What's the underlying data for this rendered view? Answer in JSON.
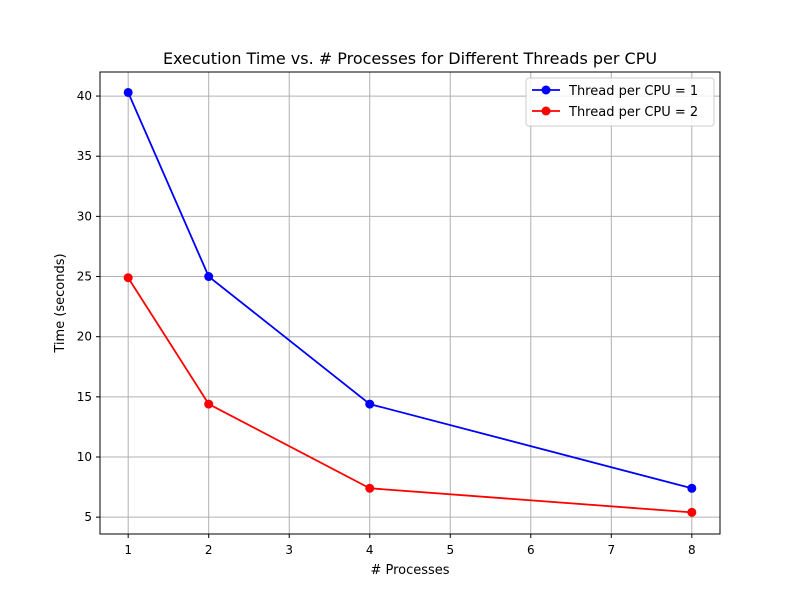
{
  "chart_data": {
    "type": "line",
    "title": "Execution Time vs. # Processes for Different Threads per CPU",
    "xlabel": "# Processes",
    "ylabel": "Time (seconds)",
    "xlim": [
      0.65,
      8.35
    ],
    "ylim": [
      3.6,
      42.0
    ],
    "xticks": [
      1,
      2,
      3,
      4,
      5,
      6,
      7,
      8
    ],
    "yticks": [
      5,
      10,
      15,
      20,
      25,
      30,
      35,
      40
    ],
    "grid": true,
    "legend_position": "top-right",
    "series": [
      {
        "name": "Thread per CPU = 1",
        "color": "#0000ff",
        "marker": "circle",
        "x": [
          1,
          2,
          4,
          8
        ],
        "y": [
          40.3,
          25.0,
          14.4,
          7.4
        ]
      },
      {
        "name": "Thread per CPU = 2",
        "color": "#ff0000",
        "marker": "circle",
        "x": [
          1,
          2,
          4,
          8
        ],
        "y": [
          24.9,
          14.4,
          7.4,
          5.4
        ]
      }
    ]
  }
}
